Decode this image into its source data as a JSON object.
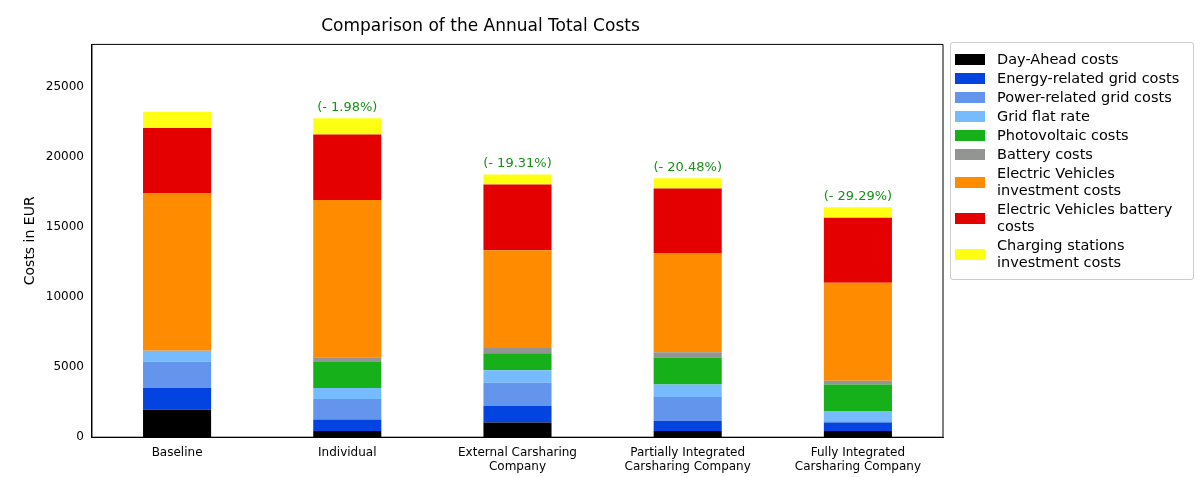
{
  "chart_data": {
    "type": "bar",
    "stacked": true,
    "title": "Comparison of the Annual Total Costs",
    "ylabel": "Costs in EUR",
    "categories": [
      "Baseline",
      "Individual",
      "External Carsharing Company",
      "Partially Integrated Carsharing Company",
      "Fully Integrated Carsharing Company"
    ],
    "series": [
      {
        "name": "Day-Ahead costs",
        "color": "#000000",
        "values": [
          1960,
          440,
          1040,
          440,
          440
        ]
      },
      {
        "name": "Energy-related grid costs",
        "color": "#0343df",
        "values": [
          1550,
          830,
          1200,
          740,
          600
        ]
      },
      {
        "name": "Power-related grid costs",
        "color": "#6495ed",
        "values": [
          1870,
          1450,
          1640,
          1680,
          100
        ]
      },
      {
        "name": "Grid flat rate",
        "color": "#75bbfd",
        "values": [
          780,
          790,
          900,
          900,
          730
        ]
      },
      {
        "name": "Photovoltaic costs",
        "color": "#15b01a",
        "values": [
          0,
          1850,
          1200,
          1920,
          1890
        ]
      },
      {
        "name": "Battery costs",
        "color": "#929591",
        "values": [
          0,
          340,
          370,
          370,
          260
        ]
      },
      {
        "name": "Electric Vehicles investment costs",
        "color": "#ff8c00",
        "values": [
          11220,
          11200,
          6970,
          7040,
          6990
        ]
      },
      {
        "name": "Electric Vehicles battery costs",
        "color": "#e50000",
        "values": [
          4660,
          4680,
          4690,
          4640,
          4640
        ]
      },
      {
        "name": "Charging stations investment costs",
        "color": "#ffff14",
        "values": [
          1160,
          1160,
          710,
          720,
          750
        ]
      }
    ],
    "ylim": [
      0,
      28000
    ],
    "yticks": [
      0,
      5000,
      10000,
      15000,
      20000,
      25000
    ],
    "grid": false,
    "legend": "right",
    "annotations": [
      {
        "text": "(- 1.98%)",
        "x": "Individual",
        "y": 22740
      },
      {
        "text": "(- 19.31%)",
        "x": "External Carsharing Company",
        "y": 18720
      },
      {
        "text": "(- 20.48%)",
        "x": "Partially Integrated Carsharing Company",
        "y": 18450
      },
      {
        "text": "(- 29.29%)",
        "x": "Fully Integrated Carsharing Company",
        "y": 16390
      }
    ]
  }
}
